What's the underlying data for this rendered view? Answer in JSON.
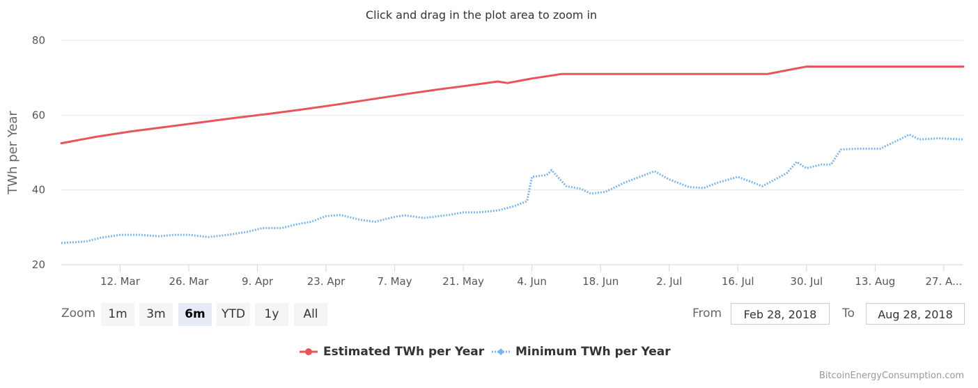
{
  "subtitle": "Click and drag in the plot area to zoom in",
  "range_selector": {
    "zoom_label": "Zoom",
    "buttons": [
      "1m",
      "3m",
      "6m",
      "YTD",
      "1y",
      "All"
    ],
    "selected": "6m",
    "from_label": "From",
    "from_value": "Feb 28, 2018",
    "to_label": "To",
    "to_value": "Aug 28, 2018"
  },
  "credits": "BitcoinEnergyConsumption.com",
  "colors": {
    "estimated": "#e8545a",
    "minimum": "#7cb5ec",
    "grid": "#e6e6e6"
  },
  "chart_data": {
    "type": "line",
    "ylabel": "TWh per Year",
    "ylim": [
      20,
      80
    ],
    "yticks": [
      20,
      40,
      60,
      80
    ],
    "xlim": [
      "2018-02-28",
      "2018-08-31"
    ],
    "xticks": [
      {
        "date": "2018-03-12",
        "label": "12. Mar"
      },
      {
        "date": "2018-03-26",
        "label": "26. Mar"
      },
      {
        "date": "2018-04-09",
        "label": "9. Apr"
      },
      {
        "date": "2018-04-23",
        "label": "23. Apr"
      },
      {
        "date": "2018-05-07",
        "label": "7. May"
      },
      {
        "date": "2018-05-21",
        "label": "21. May"
      },
      {
        "date": "2018-06-04",
        "label": "4. Jun"
      },
      {
        "date": "2018-06-18",
        "label": "18. Jun"
      },
      {
        "date": "2018-07-02",
        "label": "2. Jul"
      },
      {
        "date": "2018-07-16",
        "label": "16. Jul"
      },
      {
        "date": "2018-07-30",
        "label": "30. Jul"
      },
      {
        "date": "2018-08-13",
        "label": "13. Aug"
      },
      {
        "date": "2018-08-27",
        "label": "27. A..."
      }
    ],
    "series": [
      {
        "name": "Estimated TWh per Year",
        "style": "solid",
        "points": [
          [
            "2018-02-28",
            52.5
          ],
          [
            "2018-03-07",
            54.2
          ],
          [
            "2018-03-14",
            55.6
          ],
          [
            "2018-03-21",
            56.8
          ],
          [
            "2018-03-28",
            58.0
          ],
          [
            "2018-04-04",
            59.2
          ],
          [
            "2018-04-11",
            60.3
          ],
          [
            "2018-04-18",
            61.5
          ],
          [
            "2018-04-25",
            62.8
          ],
          [
            "2018-05-02",
            64.2
          ],
          [
            "2018-05-09",
            65.6
          ],
          [
            "2018-05-16",
            66.9
          ],
          [
            "2018-05-23",
            68.1
          ],
          [
            "2018-05-28",
            69.0
          ],
          [
            "2018-05-30",
            68.6
          ],
          [
            "2018-06-04",
            69.8
          ],
          [
            "2018-06-10",
            71.0
          ],
          [
            "2018-06-18",
            71.0
          ],
          [
            "2018-06-25",
            71.0
          ],
          [
            "2018-07-02",
            71.0
          ],
          [
            "2018-07-09",
            71.0
          ],
          [
            "2018-07-16",
            71.0
          ],
          [
            "2018-07-22",
            71.0
          ],
          [
            "2018-07-26",
            72.0
          ],
          [
            "2018-07-30",
            73.0
          ],
          [
            "2018-08-06",
            73.0
          ],
          [
            "2018-08-13",
            73.0
          ],
          [
            "2018-08-20",
            73.0
          ],
          [
            "2018-08-31",
            73.0
          ]
        ]
      },
      {
        "name": "Minimum TWh per Year",
        "style": "dotted",
        "points": [
          [
            "2018-02-28",
            25.8
          ],
          [
            "2018-03-05",
            26.2
          ],
          [
            "2018-03-08",
            27.2
          ],
          [
            "2018-03-12",
            28.0
          ],
          [
            "2018-03-16",
            28.0
          ],
          [
            "2018-03-20",
            27.6
          ],
          [
            "2018-03-23",
            28.0
          ],
          [
            "2018-03-26",
            28.0
          ],
          [
            "2018-03-30",
            27.4
          ],
          [
            "2018-04-03",
            28.0
          ],
          [
            "2018-04-07",
            28.8
          ],
          [
            "2018-04-10",
            29.8
          ],
          [
            "2018-04-14",
            29.8
          ],
          [
            "2018-04-17",
            30.8
          ],
          [
            "2018-04-20",
            31.5
          ],
          [
            "2018-04-23",
            33.0
          ],
          [
            "2018-04-26",
            33.3
          ],
          [
            "2018-04-30",
            32.0
          ],
          [
            "2018-05-03",
            31.5
          ],
          [
            "2018-05-07",
            32.8
          ],
          [
            "2018-05-09",
            33.2
          ],
          [
            "2018-05-13",
            32.5
          ],
          [
            "2018-05-18",
            33.3
          ],
          [
            "2018-05-21",
            34.0
          ],
          [
            "2018-05-24",
            34.0
          ],
          [
            "2018-05-28",
            34.5
          ],
          [
            "2018-05-31",
            35.5
          ],
          [
            "2018-06-03",
            37.0
          ],
          [
            "2018-06-04",
            43.5
          ],
          [
            "2018-06-07",
            44.0
          ],
          [
            "2018-06-08",
            45.3
          ],
          [
            "2018-06-11",
            41.0
          ],
          [
            "2018-06-14",
            40.3
          ],
          [
            "2018-06-16",
            39.0
          ],
          [
            "2018-06-19",
            39.5
          ],
          [
            "2018-06-23",
            42.0
          ],
          [
            "2018-06-27",
            44.0
          ],
          [
            "2018-06-29",
            45.0
          ],
          [
            "2018-07-02",
            42.8
          ],
          [
            "2018-07-06",
            40.8
          ],
          [
            "2018-07-09",
            40.5
          ],
          [
            "2018-07-12",
            42.0
          ],
          [
            "2018-07-16",
            43.5
          ],
          [
            "2018-07-19",
            42.0
          ],
          [
            "2018-07-21",
            41.0
          ],
          [
            "2018-07-26",
            44.5
          ],
          [
            "2018-07-28",
            47.5
          ],
          [
            "2018-07-30",
            45.8
          ],
          [
            "2018-08-02",
            46.8
          ],
          [
            "2018-08-04",
            46.8
          ],
          [
            "2018-08-06",
            50.8
          ],
          [
            "2018-08-09",
            51.0
          ],
          [
            "2018-08-14",
            51.0
          ],
          [
            "2018-08-18",
            53.5
          ],
          [
            "2018-08-20",
            54.8
          ],
          [
            "2018-08-22",
            53.5
          ],
          [
            "2018-08-26",
            53.8
          ],
          [
            "2018-08-31",
            53.5
          ]
        ]
      }
    ],
    "legend": {
      "placement": "bottom-center"
    },
    "grid": true
  }
}
